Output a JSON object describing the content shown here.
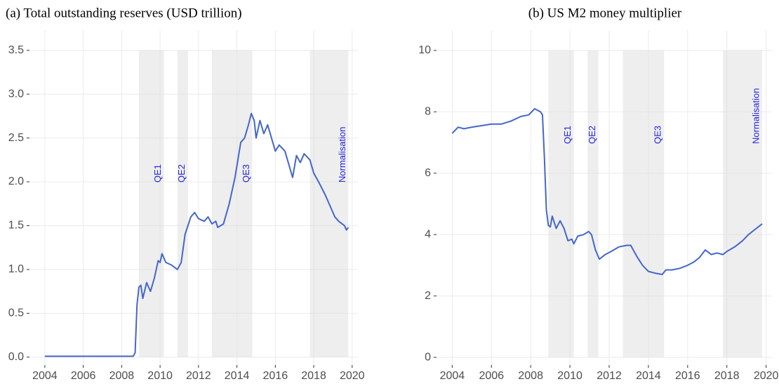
{
  "chart_data": [
    {
      "type": "line",
      "title": "(a) Total outstanding reserves (USD trillion)",
      "x": [
        2004.0,
        2005.0,
        2006.0,
        2007.0,
        2008.0,
        2008.6,
        2008.7,
        2008.8,
        2008.9,
        2009.0,
        2009.1,
        2009.3,
        2009.5,
        2009.7,
        2009.9,
        2010.0,
        2010.1,
        2010.3,
        2010.6,
        2010.9,
        2011.1,
        2011.3,
        2011.6,
        2011.8,
        2012.0,
        2012.3,
        2012.5,
        2012.7,
        2012.9,
        2013.0,
        2013.3,
        2013.6,
        2013.9,
        2014.2,
        2014.4,
        2014.6,
        2014.75,
        2014.9,
        2015.0,
        2015.2,
        2015.4,
        2015.6,
        2015.8,
        2016.0,
        2016.2,
        2016.5,
        2016.7,
        2016.9,
        2017.1,
        2017.3,
        2017.5,
        2017.8,
        2018.0,
        2018.3,
        2018.6,
        2018.9,
        2019.1,
        2019.3,
        2019.6,
        2019.7,
        2019.8
      ],
      "values": [
        0.01,
        0.01,
        0.01,
        0.01,
        0.01,
        0.01,
        0.05,
        0.6,
        0.8,
        0.82,
        0.67,
        0.85,
        0.75,
        0.9,
        1.1,
        1.08,
        1.18,
        1.08,
        1.05,
        1.0,
        1.08,
        1.4,
        1.6,
        1.65,
        1.58,
        1.55,
        1.6,
        1.52,
        1.55,
        1.48,
        1.52,
        1.75,
        2.05,
        2.45,
        2.5,
        2.65,
        2.78,
        2.7,
        2.5,
        2.7,
        2.55,
        2.65,
        2.5,
        2.35,
        2.42,
        2.35,
        2.2,
        2.05,
        2.3,
        2.22,
        2.32,
        2.25,
        2.1,
        1.98,
        1.85,
        1.7,
        1.6,
        1.55,
        1.5,
        1.45,
        1.48
      ],
      "color": "#4466cc",
      "xlim": [
        2003.2,
        2020.3
      ],
      "xticks": [
        2004,
        2006,
        2008,
        2010,
        2012,
        2014,
        2016,
        2018,
        2020
      ],
      "ylim": [
        -0.09,
        3.73
      ],
      "yticks": [
        0.0,
        0.5,
        1.0,
        1.5,
        2.0,
        2.5,
        3.0,
        3.5
      ],
      "ytick_labels": [
        "0.0",
        "0.5",
        "1.0",
        "1.5",
        "2.0",
        "2.5",
        "3.0",
        "3.5"
      ],
      "grid": true,
      "shaded_periods": [
        {
          "label": "QE1",
          "start": 2008.9,
          "end": 2010.2
        },
        {
          "label": "QE2",
          "start": 2010.9,
          "end": 2011.45
        },
        {
          "label": "QE3",
          "start": 2012.7,
          "end": 2014.8
        },
        {
          "label": "Normalisation",
          "start": 2017.8,
          "end": 2019.8
        }
      ]
    },
    {
      "type": "line",
      "title": "(b) US M2 money multiplier",
      "x": [
        2004.0,
        2004.3,
        2004.6,
        2005.0,
        2005.5,
        2006.0,
        2006.5,
        2007.0,
        2007.5,
        2007.9,
        2008.2,
        2008.5,
        2008.6,
        2008.7,
        2008.8,
        2008.9,
        2009.0,
        2009.1,
        2009.3,
        2009.5,
        2009.7,
        2009.9,
        2010.1,
        2010.2,
        2010.4,
        2010.7,
        2010.95,
        2011.1,
        2011.3,
        2011.5,
        2011.8,
        2012.1,
        2012.5,
        2012.9,
        2013.1,
        2013.4,
        2013.7,
        2014.0,
        2014.3,
        2014.7,
        2014.9,
        2015.2,
        2015.6,
        2016.0,
        2016.3,
        2016.6,
        2016.9,
        2017.2,
        2017.5,
        2017.8,
        2018.0,
        2018.4,
        2018.8,
        2019.1,
        2019.4,
        2019.7,
        2019.8
      ],
      "values": [
        7.3,
        7.5,
        7.45,
        7.5,
        7.55,
        7.6,
        7.6,
        7.7,
        7.85,
        7.9,
        8.1,
        8.0,
        7.9,
        6.5,
        4.8,
        4.3,
        4.25,
        4.6,
        4.2,
        4.45,
        4.2,
        3.8,
        3.85,
        3.7,
        3.95,
        4.0,
        4.1,
        4.0,
        3.5,
        3.2,
        3.35,
        3.45,
        3.6,
        3.65,
        3.65,
        3.3,
        3.0,
        2.8,
        2.75,
        2.7,
        2.85,
        2.85,
        2.9,
        3.0,
        3.1,
        3.25,
        3.5,
        3.35,
        3.4,
        3.35,
        3.45,
        3.6,
        3.8,
        4.0,
        4.15,
        4.3,
        4.35
      ],
      "color": "#4466cc",
      "xlim": [
        2003.2,
        2020.3
      ],
      "xticks": [
        2004,
        2006,
        2008,
        2010,
        2012,
        2014,
        2016,
        2018,
        2020
      ],
      "ylim": [
        -0.25,
        10.66
      ],
      "yticks": [
        0,
        2,
        4,
        6,
        8,
        10
      ],
      "grid": true,
      "shaded_periods": [
        {
          "label": "QE1",
          "start": 2008.9,
          "end": 2010.2
        },
        {
          "label": "QE2",
          "start": 2010.9,
          "end": 2011.45
        },
        {
          "label": "QE3",
          "start": 2012.7,
          "end": 2014.8
        },
        {
          "label": "Normalisation",
          "start": 2017.8,
          "end": 2019.8
        }
      ]
    }
  ]
}
